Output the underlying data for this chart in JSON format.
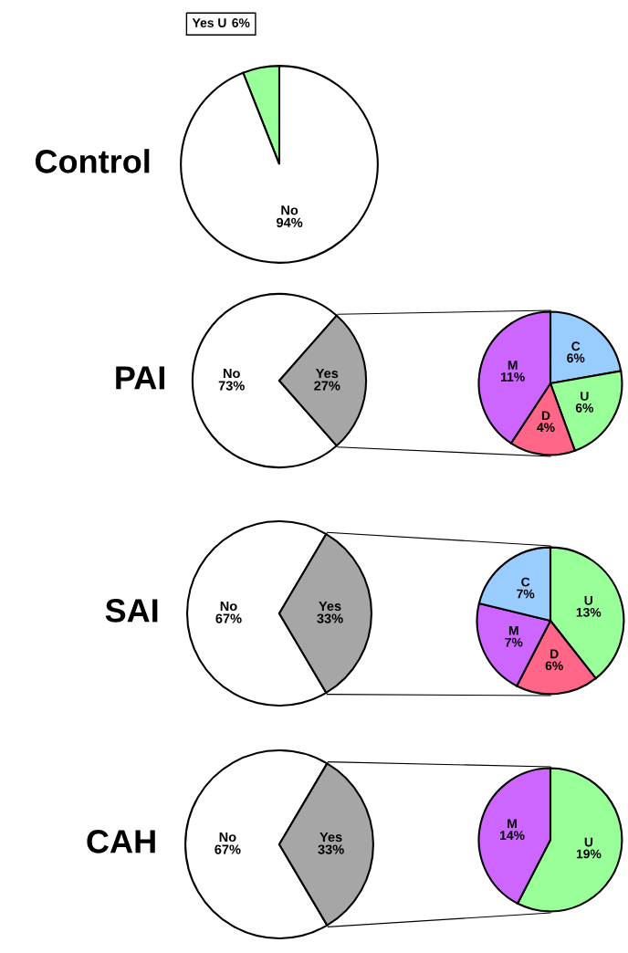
{
  "chart_data": [
    {
      "type": "pie",
      "title": "Control",
      "categories": [
        "Yes U",
        "No"
      ],
      "values": [
        6,
        94
      ],
      "value_labels": [
        "6%",
        "94%"
      ],
      "colors": [
        "#99ff99",
        "#ffffff"
      ]
    },
    {
      "type": "pie",
      "title": "PAI",
      "categories": [
        "No",
        "Yes"
      ],
      "values": [
        73,
        27
      ],
      "value_labels": [
        "73%",
        "27%"
      ],
      "colors": [
        "#ffffff",
        "#a6a6a6"
      ]
    },
    {
      "type": "pie",
      "categories": [
        "C",
        "U",
        "D",
        "M"
      ],
      "values": [
        6,
        6,
        4,
        11
      ],
      "value_labels": [
        "6%",
        "6%",
        "4%",
        "11%"
      ],
      "colors": [
        "#99ccff",
        "#99ff99",
        "#ff6688",
        "#cc66ff"
      ]
    },
    {
      "type": "pie",
      "title": "SAI",
      "categories": [
        "No",
        "Yes"
      ],
      "values": [
        67,
        33
      ],
      "value_labels": [
        "67%",
        "33%"
      ],
      "colors": [
        "#ffffff",
        "#a6a6a6"
      ]
    },
    {
      "type": "pie",
      "categories": [
        "U",
        "D",
        "M",
        "C"
      ],
      "values": [
        13,
        6,
        7,
        7
      ],
      "value_labels": [
        "13%",
        "6%",
        "7%",
        "7%"
      ],
      "colors": [
        "#99ff99",
        "#ff6688",
        "#cc66ff",
        "#99ccff"
      ]
    },
    {
      "type": "pie",
      "title": "CAH",
      "categories": [
        "No",
        "Yes"
      ],
      "values": [
        67,
        33
      ],
      "value_labels": [
        "67%",
        "33%"
      ],
      "colors": [
        "#ffffff",
        "#a6a6a6"
      ]
    },
    {
      "type": "pie",
      "categories": [
        "U",
        "M"
      ],
      "values": [
        19,
        14
      ],
      "value_labels": [
        "19%",
        "14%"
      ],
      "colors": [
        "#99ff99",
        "#cc66ff"
      ]
    }
  ]
}
